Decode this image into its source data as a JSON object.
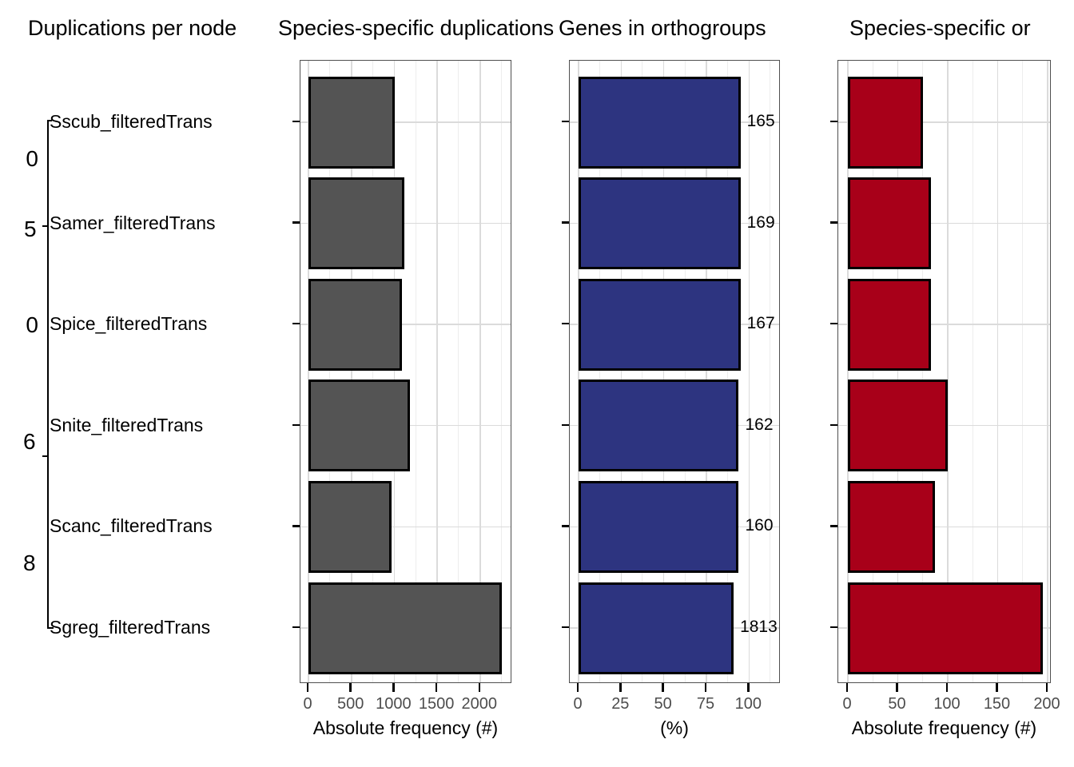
{
  "figure": {
    "titles": [
      "Duplications per node",
      "Species-specific duplications",
      "Genes in orthogroups",
      "Species-specific or"
    ]
  },
  "chart_data": {
    "type": "bar",
    "orientation": "horizontal",
    "grid": "on",
    "categories": [
      "Sscub_filteredTrans",
      "Samer_filteredTrans",
      "Spice_filteredTrans",
      "Snite_filteredTrans",
      "Scanc_filteredTrans",
      "Sgreg_filteredTrans"
    ],
    "tree_node_label_fragments": [
      "0",
      "5",
      "0",
      "6",
      "8"
    ],
    "panels": [
      {
        "title": "Species-specific duplications",
        "xlabel": "Absolute frequency (#)",
        "xticks": [
          0,
          500,
          1000,
          1500,
          2000
        ],
        "xlim": [
          0,
          2375
        ],
        "minor_grid_step": 250,
        "values": [
          1005,
          1120,
          1090,
          1185,
          965,
          2255
        ],
        "bar_color": "#545454"
      },
      {
        "title": "Genes in orthogroups",
        "xlabel": "(%)",
        "xticks": [
          0,
          25,
          50,
          75,
          100
        ],
        "xlim": [
          0,
          118
        ],
        "minor_grid_step": 12.5,
        "values": [
          95,
          95,
          95,
          94,
          94,
          91
        ],
        "bar_labels": [
          "165",
          "169",
          "167",
          "162",
          "160",
          "1813"
        ],
        "bar_color": "#2D3480"
      },
      {
        "title": "Species-specific or",
        "xlabel": "Absolute frequency (#)",
        "xticks": [
          0,
          50,
          100,
          150,
          200
        ],
        "xlim": [
          0,
          204
        ],
        "minor_grid_step": 25,
        "values": [
          75,
          83,
          83,
          100,
          87,
          195
        ],
        "bar_color": "#A80019"
      }
    ],
    "colors": {
      "grid_minor": "#EDEDED",
      "grid_major": "#DBDBDB",
      "bar_stroke": "#000000",
      "tick_label": "#4d4d4d",
      "panel_border": "#4f4f4f"
    }
  }
}
